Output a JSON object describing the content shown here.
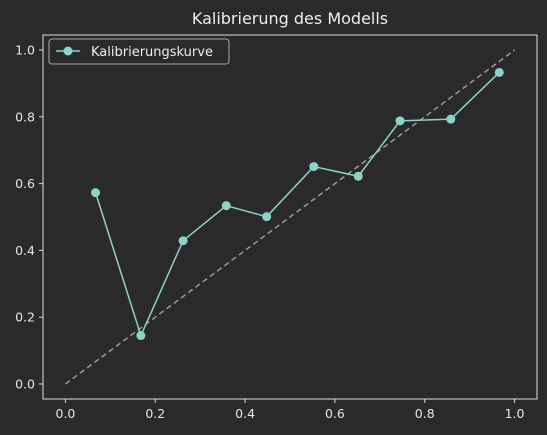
{
  "chart_data": {
    "type": "line",
    "title": "Kalibrierung des Modells",
    "xlabel": "",
    "ylabel": "",
    "xlim": [
      -0.05,
      1.05
    ],
    "ylim": [
      -0.045,
      1.045
    ],
    "xticks": [
      0.0,
      0.2,
      0.4,
      0.6,
      0.8,
      1.0
    ],
    "yticks": [
      0.0,
      0.2,
      0.4,
      0.6,
      0.8,
      1.0
    ],
    "xtick_labels": [
      "0.0",
      "0.2",
      "0.4",
      "0.6",
      "0.8",
      "1.0"
    ],
    "ytick_labels": [
      "0.0",
      "0.2",
      "0.4",
      "0.6",
      "0.8",
      "1.0"
    ],
    "grid": false,
    "legend_position": "top-left",
    "series": [
      {
        "name": "Kalibrierungskurve",
        "color": "#8dd3c7",
        "marker": "circle",
        "x": [
          0.067,
          0.168,
          0.262,
          0.358,
          0.448,
          0.553,
          0.652,
          0.745,
          0.858,
          0.966
        ],
        "y": [
          0.573,
          0.145,
          0.429,
          0.534,
          0.501,
          0.651,
          0.622,
          0.788,
          0.793,
          0.933
        ]
      },
      {
        "color": "#999999",
        "style": "dashed",
        "x": [
          0.0,
          1.0
        ],
        "y": [
          0.0,
          1.0
        ]
      }
    ]
  },
  "colors": {
    "background": "#2b2a2b",
    "axes": "#dddddd",
    "text": "#eeeeee"
  }
}
